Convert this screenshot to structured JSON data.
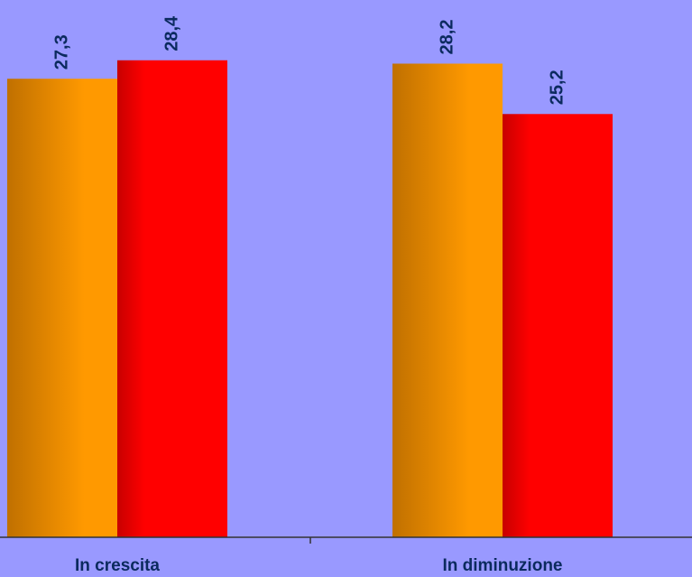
{
  "chart_data": {
    "type": "bar",
    "categories": [
      "In crescita",
      "In diminuzione"
    ],
    "series": [
      {
        "color": "#ff9900",
        "shade": "#c07000",
        "values": [
          27.3,
          28.2
        ]
      },
      {
        "color": "#ff0000",
        "shade": "#c80000",
        "values": [
          28.4,
          25.2
        ]
      }
    ],
    "data_labels": [
      [
        "27,3",
        "28,2"
      ],
      [
        "28,4",
        "25,2"
      ]
    ],
    "background": "#9999ff",
    "label_color": "#0b2a5e",
    "grid": false,
    "legend": "none"
  }
}
